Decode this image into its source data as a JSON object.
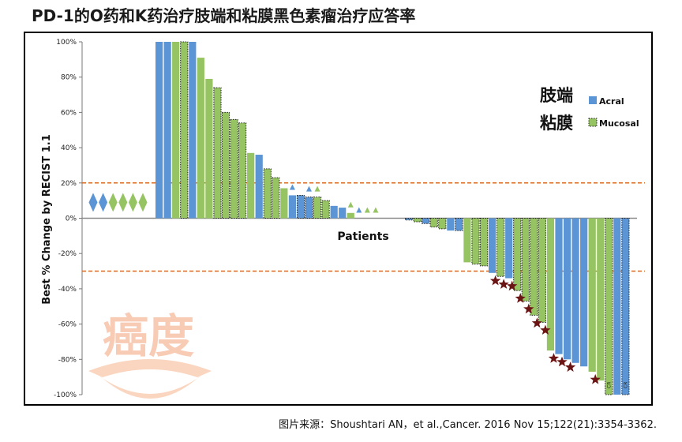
{
  "header": {
    "title": "PD-1的O药和K药治疗肢端和粘膜黑色素瘤治疗应答率"
  },
  "footer": {
    "citation": "图片来源：Shoushtari AN，et al.,Cancer. 2016 Nov 15;122(21):3354-3362."
  },
  "watermark": {
    "text": "癌度"
  },
  "colors": {
    "acral": "#5b95d5",
    "mucosal": "#96c463",
    "threshold": "#d9691f",
    "star": "#6b1414",
    "zero_line": "#8a8a8a"
  },
  "chart_data": {
    "type": "bar",
    "title": "",
    "xlabel": "Patients",
    "ylabel": "Best % Change by RECIST 1.1",
    "ylim": [
      -100,
      100
    ],
    "yticks": [
      "100%",
      "80%",
      "60%",
      "40%",
      "20%",
      "0%",
      "-20%",
      "-40%",
      "-60%",
      "-80%",
      "-100%"
    ],
    "ytick_values": [
      100,
      80,
      60,
      40,
      20,
      0,
      -20,
      -40,
      -60,
      -80,
      -100
    ],
    "thresholds": [
      20,
      -30
    ],
    "grid": false,
    "legend": {
      "position": "top-right",
      "entries": [
        {
          "cn": "肢端",
          "name": "Acral",
          "series": "acral",
          "pattern": "solid"
        },
        {
          "cn": "粘膜",
          "name": "Mucosal",
          "series": "mucosal",
          "pattern": "dotted-border"
        }
      ]
    },
    "progression_markers": {
      "shape": "diamond",
      "series": [
        "acral",
        "acral",
        "mucosal",
        "mucosal",
        "mucosal",
        "mucosal"
      ]
    },
    "bars": [
      {
        "series": "acral",
        "value": 100,
        "dotted": false
      },
      {
        "series": "acral",
        "value": 100,
        "dotted": false
      },
      {
        "series": "mucosal",
        "value": 100,
        "dotted": false
      },
      {
        "series": "mucosal",
        "value": 100,
        "dotted": true
      },
      {
        "series": "acral",
        "value": 100,
        "dotted": false
      },
      {
        "series": "mucosal",
        "value": 91,
        "dotted": false
      },
      {
        "series": "mucosal",
        "value": 79,
        "dotted": false
      },
      {
        "series": "mucosal",
        "value": 74,
        "dotted": true
      },
      {
        "series": "mucosal",
        "value": 60,
        "dotted": true
      },
      {
        "series": "mucosal",
        "value": 56,
        "dotted": true
      },
      {
        "series": "mucosal",
        "value": 54,
        "dotted": true
      },
      {
        "series": "mucosal",
        "value": 37,
        "dotted": false
      },
      {
        "series": "acral",
        "value": 36,
        "dotted": false
      },
      {
        "series": "mucosal",
        "value": 28,
        "dotted": true
      },
      {
        "series": "mucosal",
        "value": 23,
        "dotted": true
      },
      {
        "series": "mucosal",
        "value": 17,
        "dotted": false
      },
      {
        "series": "acral",
        "value": 13,
        "dotted": false,
        "marker": "triangle"
      },
      {
        "series": "acral",
        "value": 13,
        "dotted": true
      },
      {
        "series": "acral",
        "value": 12,
        "dotted": true,
        "marker": "triangle"
      },
      {
        "series": "mucosal",
        "value": 12,
        "dotted": true,
        "marker": "triangle"
      },
      {
        "series": "mucosal",
        "value": 10,
        "dotted": true
      },
      {
        "series": "acral",
        "value": 7,
        "dotted": false
      },
      {
        "series": "acral",
        "value": 6,
        "dotted": false
      },
      {
        "series": "mucosal",
        "value": 3,
        "dotted": false,
        "marker": "triangle"
      },
      {
        "series": "acral",
        "value": 0,
        "dotted": false,
        "marker": "triangle"
      },
      {
        "series": "mucosal",
        "value": 0,
        "dotted": false,
        "marker": "triangle"
      },
      {
        "series": "mucosal",
        "value": 0,
        "dotted": false,
        "marker": "triangle"
      },
      {
        "series": "acral",
        "value": 0,
        "dotted": false
      },
      {
        "series": "acral",
        "value": 0,
        "dotted": false
      },
      {
        "series": "acral",
        "value": 0,
        "dotted": false
      },
      {
        "series": "acral",
        "value": -1,
        "dotted": true
      },
      {
        "series": "mucosal",
        "value": -2,
        "dotted": true
      },
      {
        "series": "acral",
        "value": -3,
        "dotted": true
      },
      {
        "series": "mucosal",
        "value": -5,
        "dotted": true
      },
      {
        "series": "mucosal",
        "value": -6,
        "dotted": true
      },
      {
        "series": "acral",
        "value": -7,
        "dotted": false
      },
      {
        "series": "acral",
        "value": -7,
        "dotted": true
      },
      {
        "series": "mucosal",
        "value": -25,
        "dotted": false
      },
      {
        "series": "mucosal",
        "value": -26,
        "dotted": true
      },
      {
        "series": "mucosal",
        "value": -27,
        "dotted": true
      },
      {
        "series": "acral",
        "value": -31,
        "dotted": false,
        "marker": "star"
      },
      {
        "series": "mucosal",
        "value": -33,
        "dotted": true,
        "marker": "star"
      },
      {
        "series": "acral",
        "value": -34,
        "dotted": false,
        "marker": "star"
      },
      {
        "series": "mucosal",
        "value": -41,
        "dotted": true,
        "marker": "star"
      },
      {
        "series": "mucosal",
        "value": -47,
        "dotted": true,
        "marker": "star"
      },
      {
        "series": "mucosal",
        "value": -55,
        "dotted": true,
        "marker": "star"
      },
      {
        "series": "mucosal",
        "value": -59,
        "dotted": true,
        "marker": "star"
      },
      {
        "series": "mucosal",
        "value": -75,
        "dotted": false,
        "marker": "star"
      },
      {
        "series": "acral",
        "value": -77,
        "dotted": false,
        "marker": "star"
      },
      {
        "series": "acral",
        "value": -80,
        "dotted": false,
        "marker": "star"
      },
      {
        "series": "acral",
        "value": -82,
        "dotted": false
      },
      {
        "series": "acral",
        "value": -84,
        "dotted": false
      },
      {
        "series": "mucosal",
        "value": -87,
        "dotted": false,
        "marker": "star"
      },
      {
        "series": "mucosal",
        "value": -92,
        "dotted": false
      },
      {
        "series": "mucosal",
        "value": -100,
        "dotted": true,
        "label": "CR"
      },
      {
        "series": "acral",
        "value": -100,
        "dotted": false
      },
      {
        "series": "acral",
        "value": -100,
        "dotted": true,
        "label": "CR"
      }
    ]
  }
}
